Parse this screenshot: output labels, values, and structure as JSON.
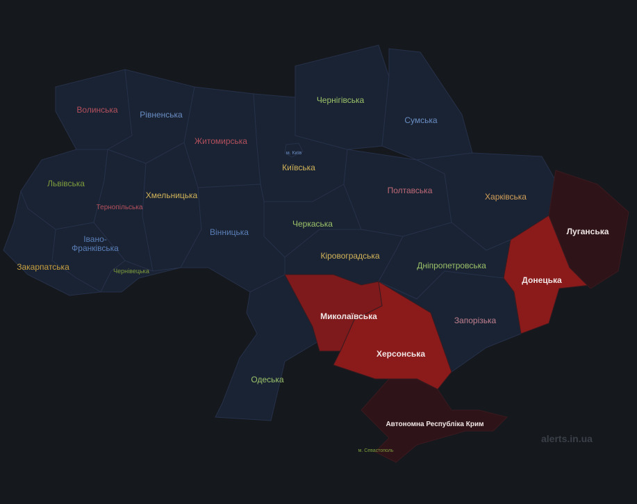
{
  "colors": {
    "background": "#15181d",
    "region_calm": "#1a2333",
    "alert_active": "#8b1a1a",
    "alert_mykolaiv": "#7e1a1c",
    "alert_long": "#2e1419"
  },
  "regions": [
    {
      "id": "volynska",
      "label": "Волинська",
      "status": "calm",
      "color": "#b5515e"
    },
    {
      "id": "rivnenska",
      "label": "Рівненська",
      "status": "calm",
      "color": "#6a8ec4"
    },
    {
      "id": "zhytomyrska",
      "label": "Житомирська",
      "status": "calm",
      "color": "#b5515e"
    },
    {
      "id": "kyivska",
      "label": "Київська",
      "status": "calm",
      "color": "#d2b45a"
    },
    {
      "id": "kyiv-city",
      "label": "м. Київ",
      "status": "calm",
      "color": "#6a8ec4"
    },
    {
      "id": "chernihivska",
      "label": "Чернігівська",
      "status": "calm",
      "color": "#9cc36a"
    },
    {
      "id": "sumska",
      "label": "Сумська",
      "status": "calm",
      "color": "#6a8ec4"
    },
    {
      "id": "lvivska",
      "label": "Львівська",
      "status": "calm",
      "color": "#7f9e3e"
    },
    {
      "id": "ternopilska",
      "label": "Тернопільська",
      "status": "calm",
      "color": "#b5515e"
    },
    {
      "id": "khmelnytska",
      "label": "Хмельницька",
      "status": "calm",
      "color": "#d2b45a"
    },
    {
      "id": "vinnytska",
      "label": "Вінницька",
      "status": "calm",
      "color": "#5a7fb8"
    },
    {
      "id": "cherkaska",
      "label": "Черкаська",
      "status": "calm",
      "color": "#9cc36a"
    },
    {
      "id": "poltavska",
      "label": "Полтавська",
      "status": "calm",
      "color": "#c06a78"
    },
    {
      "id": "kharkivska",
      "label": "Харківська",
      "status": "calm",
      "color": "#d2a05a"
    },
    {
      "id": "ivano-frankivska",
      "label": "Івано-Франківська",
      "status": "calm",
      "color": "#5a7fb8"
    },
    {
      "id": "zakarpatska",
      "label": "Закарпатська",
      "status": "calm",
      "color": "#c8a040"
    },
    {
      "id": "chernivetska",
      "label": "Чернівецька",
      "status": "calm",
      "color": "#7f9e3e"
    },
    {
      "id": "kirovohradska",
      "label": "Кіровоградська",
      "status": "calm",
      "color": "#d2b45a"
    },
    {
      "id": "dnipropetrovska",
      "label": "Дніпропетровська",
      "status": "calm",
      "color": "#9cc36a"
    },
    {
      "id": "odeska",
      "label": "Одеська",
      "status": "calm",
      "color": "#9cc36a"
    },
    {
      "id": "zaporizka",
      "label": "Запорізька",
      "status": "calm",
      "color": "#c08090"
    },
    {
      "id": "mykolaivska",
      "label": "Миколаївська",
      "status": "alert"
    },
    {
      "id": "khersonska",
      "label": "Херсонська",
      "status": "alert"
    },
    {
      "id": "donetska",
      "label": "Донецька",
      "status": "alert"
    },
    {
      "id": "luhanska",
      "label": "Луганська",
      "status": "alert-long"
    },
    {
      "id": "crimea",
      "label": "Автономна Республіка Крим",
      "status": "alert-long"
    },
    {
      "id": "sevastopol",
      "label": "м. Севастополь",
      "status": "alert-long",
      "color": "#7f9e3e"
    }
  ],
  "watermark": "alerts.in.ua"
}
